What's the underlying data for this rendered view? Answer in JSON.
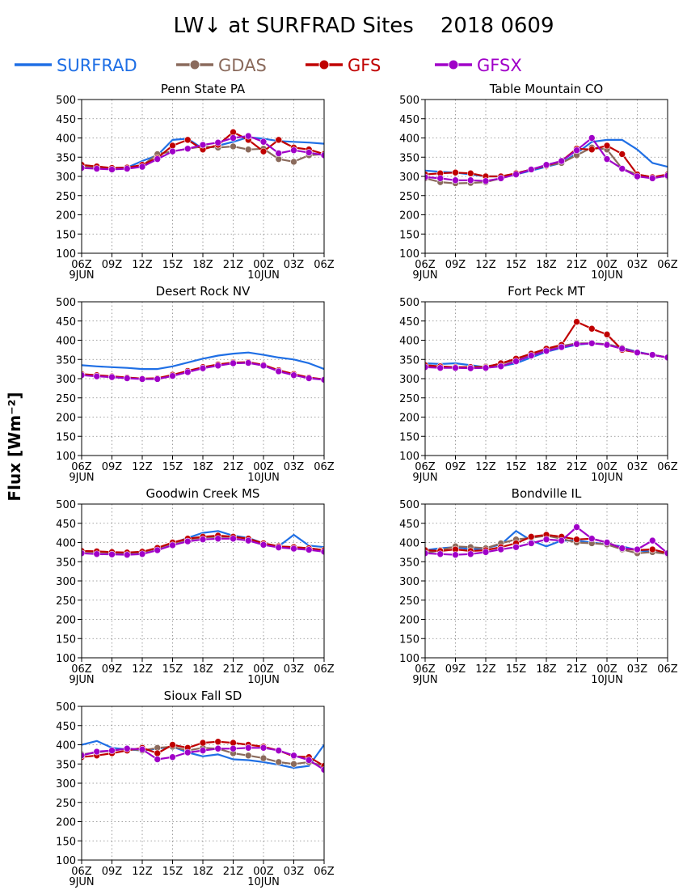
{
  "title": "LW↓ at SURFRAD Sites    2018 0609",
  "ylabel": "Flux [Wm⁻²]",
  "legend": [
    {
      "name": "SURFRAD",
      "color": "#1f6fe5",
      "marker": false
    },
    {
      "name": "GDAS",
      "color": "#8a6a5c",
      "marker": true
    },
    {
      "name": "GFS",
      "color": "#c00000",
      "marker": true
    },
    {
      "name": "GFSX",
      "color": "#a000c8",
      "marker": true
    }
  ],
  "x_ticks": [
    "06Z",
    "09Z",
    "12Z",
    "15Z",
    "18Z",
    "21Z",
    "00Z",
    "03Z",
    "06Z"
  ],
  "x_date_labels": [
    {
      "tick": 0,
      "text": "9JUN"
    },
    {
      "tick": 6,
      "text": "10JUN"
    }
  ],
  "chart_data": [
    {
      "type": "line",
      "title": "Penn State PA",
      "ylim": [
        100,
        500
      ],
      "yticks": [
        100,
        150,
        200,
        250,
        300,
        350,
        400,
        450,
        500
      ],
      "x": [
        0,
        1.5,
        3,
        4.5,
        6,
        7.5,
        9,
        10.5,
        12,
        13.5,
        15,
        16.5,
        18,
        19.5,
        21,
        22.5,
        24
      ],
      "series": [
        {
          "name": "SURFRAD",
          "values": [
            330,
            325,
            322,
            323,
            340,
            355,
            395,
            398,
            372,
            380,
            390,
            402,
            398,
            392,
            390,
            388,
            385
          ]
        },
        {
          "name": "GDAS",
          "values": [
            327,
            323,
            320,
            322,
            328,
            358,
            365,
            372,
            378,
            375,
            378,
            370,
            372,
            345,
            338,
            355,
            358
          ]
        },
        {
          "name": "GFS",
          "values": [
            330,
            326,
            322,
            323,
            330,
            348,
            380,
            395,
            370,
            382,
            415,
            395,
            365,
            395,
            375,
            370,
            358
          ]
        },
        {
          "name": "GFSX",
          "values": [
            322,
            320,
            318,
            320,
            325,
            345,
            365,
            372,
            382,
            388,
            400,
            405,
            390,
            360,
            368,
            362,
            355
          ]
        }
      ]
    },
    {
      "type": "line",
      "title": "Table Mountain CO",
      "ylim": [
        100,
        500
      ],
      "yticks": [
        100,
        150,
        200,
        250,
        300,
        350,
        400,
        450,
        500
      ],
      "x": [
        0,
        1.5,
        3,
        4.5,
        6,
        7.5,
        9,
        10.5,
        12,
        13.5,
        15,
        16.5,
        18,
        19.5,
        21,
        22.5,
        24
      ],
      "series": [
        {
          "name": "SURFRAD",
          "values": [
            315,
            312,
            310,
            305,
            300,
            300,
            305,
            315,
            325,
            335,
            360,
            390,
            395,
            395,
            370,
            335,
            325
          ]
        },
        {
          "name": "GDAS",
          "values": [
            295,
            285,
            282,
            283,
            285,
            295,
            308,
            318,
            328,
            335,
            355,
            375,
            370,
            320,
            305,
            298,
            300
          ]
        },
        {
          "name": "GFS",
          "values": [
            305,
            308,
            310,
            308,
            300,
            300,
            308,
            318,
            328,
            340,
            372,
            370,
            380,
            358,
            305,
            298,
            305
          ]
        },
        {
          "name": "GFSX",
          "values": [
            298,
            295,
            290,
            290,
            288,
            295,
            305,
            318,
            330,
            340,
            368,
            400,
            345,
            320,
            300,
            295,
            302
          ]
        }
      ]
    },
    {
      "type": "line",
      "title": "Desert Rock NV",
      "ylim": [
        100,
        500
      ],
      "yticks": [
        100,
        150,
        200,
        250,
        300,
        350,
        400,
        450,
        500
      ],
      "x": [
        0,
        1.5,
        3,
        4.5,
        6,
        7.5,
        9,
        10.5,
        12,
        13.5,
        15,
        16.5,
        18,
        19.5,
        21,
        22.5,
        24
      ],
      "series": [
        {
          "name": "SURFRAD",
          "values": [
            335,
            332,
            330,
            328,
            325,
            325,
            332,
            342,
            352,
            360,
            365,
            368,
            362,
            355,
            350,
            340,
            325
          ]
        },
        {
          "name": "GDAS",
          "values": [
            310,
            308,
            305,
            303,
            300,
            300,
            308,
            318,
            328,
            335,
            340,
            342,
            335,
            320,
            310,
            302,
            298
          ]
        },
        {
          "name": "GFS",
          "values": [
            312,
            309,
            306,
            303,
            300,
            301,
            310,
            320,
            330,
            337,
            342,
            343,
            336,
            322,
            312,
            303,
            298
          ]
        },
        {
          "name": "GFSX",
          "values": [
            309,
            306,
            304,
            301,
            299,
            299,
            307,
            317,
            327,
            334,
            340,
            341,
            334,
            319,
            309,
            301,
            297
          ]
        }
      ]
    },
    {
      "type": "line",
      "title": "Fort Peck MT",
      "ylim": [
        100,
        500
      ],
      "yticks": [
        100,
        150,
        200,
        250,
        300,
        350,
        400,
        450,
        500
      ],
      "x": [
        0,
        1.5,
        3,
        4.5,
        6,
        7.5,
        9,
        10.5,
        12,
        13.5,
        15,
        16.5,
        18,
        19.5,
        21,
        22.5,
        24
      ],
      "series": [
        {
          "name": "SURFRAD",
          "values": [
            340,
            338,
            340,
            335,
            330,
            332,
            340,
            355,
            370,
            380,
            388,
            392,
            390,
            380,
            370,
            362,
            355
          ]
        },
        {
          "name": "GDAS",
          "values": [
            332,
            330,
            330,
            330,
            332,
            338,
            350,
            362,
            375,
            385,
            392,
            392,
            390,
            380,
            368,
            362,
            355
          ]
        },
        {
          "name": "GFS",
          "values": [
            335,
            332,
            330,
            330,
            330,
            340,
            352,
            365,
            378,
            388,
            448,
            430,
            415,
            375,
            368,
            362,
            355
          ]
        },
        {
          "name": "GFSX",
          "values": [
            330,
            328,
            328,
            327,
            328,
            332,
            345,
            360,
            372,
            382,
            390,
            392,
            388,
            378,
            368,
            362,
            355
          ]
        }
      ]
    },
    {
      "type": "line",
      "title": "Goodwin Creek MS",
      "ylim": [
        100,
        500
      ],
      "yticks": [
        100,
        150,
        200,
        250,
        300,
        350,
        400,
        450,
        500
      ],
      "x": [
        0,
        1.5,
        3,
        4.5,
        6,
        7.5,
        9,
        10.5,
        12,
        13.5,
        15,
        16.5,
        18,
        19.5,
        21,
        22.5,
        24
      ],
      "series": [
        {
          "name": "SURFRAD",
          "values": [
            378,
            376,
            374,
            372,
            375,
            385,
            398,
            412,
            425,
            430,
            418,
            412,
            398,
            390,
            420,
            392,
            388
          ]
        },
        {
          "name": "GDAS",
          "values": [
            377,
            375,
            374,
            373,
            375,
            385,
            398,
            408,
            413,
            415,
            415,
            410,
            398,
            390,
            388,
            385,
            380
          ]
        },
        {
          "name": "GFS",
          "values": [
            378,
            377,
            375,
            374,
            376,
            386,
            400,
            410,
            415,
            418,
            415,
            410,
            398,
            390,
            388,
            385,
            380
          ]
        },
        {
          "name": "GFSX",
          "values": [
            372,
            370,
            369,
            368,
            370,
            380,
            393,
            403,
            408,
            410,
            410,
            405,
            394,
            387,
            384,
            381,
            376
          ]
        }
      ]
    },
    {
      "type": "line",
      "title": "Bondville IL",
      "ylim": [
        100,
        500
      ],
      "yticks": [
        100,
        150,
        200,
        250,
        300,
        350,
        400,
        450,
        500
      ],
      "x": [
        0,
        1.5,
        3,
        4.5,
        6,
        7.5,
        9,
        10.5,
        12,
        13.5,
        15,
        16.5,
        18,
        19.5,
        21,
        22.5,
        24
      ],
      "series": [
        {
          "name": "SURFRAD",
          "values": [
            380,
            385,
            388,
            382,
            385,
            395,
            430,
            405,
            390,
            405,
            405,
            400,
            395,
            390,
            380,
            375,
            372
          ]
        },
        {
          "name": "GDAS",
          "values": [
            372,
            380,
            390,
            388,
            385,
            398,
            408,
            412,
            418,
            410,
            400,
            398,
            395,
            382,
            372,
            375,
            370
          ]
        },
        {
          "name": "GFS",
          "values": [
            380,
            378,
            382,
            378,
            380,
            388,
            398,
            415,
            420,
            415,
            408,
            410,
            400,
            385,
            380,
            382,
            372
          ]
        },
        {
          "name": "GFSX",
          "values": [
            372,
            370,
            368,
            370,
            375,
            382,
            388,
            398,
            408,
            405,
            440,
            410,
            400,
            385,
            382,
            405,
            372
          ]
        }
      ]
    },
    {
      "type": "line",
      "title": "Sioux Fall SD",
      "ylim": [
        100,
        500
      ],
      "yticks": [
        100,
        150,
        200,
        250,
        300,
        350,
        400,
        450,
        500
      ],
      "x": [
        0,
        1.5,
        3,
        4.5,
        6,
        7.5,
        9,
        10.5,
        12,
        13.5,
        15,
        16.5,
        18,
        19.5,
        21,
        22.5,
        24
      ],
      "series": [
        {
          "name": "SURFRAD",
          "values": [
            400,
            410,
            392,
            388,
            385,
            390,
            395,
            380,
            370,
            375,
            362,
            360,
            355,
            348,
            340,
            345,
            400
          ]
        },
        {
          "name": "GDAS",
          "values": [
            375,
            380,
            385,
            390,
            385,
            392,
            395,
            385,
            392,
            390,
            378,
            372,
            365,
            355,
            350,
            355,
            345
          ]
        },
        {
          "name": "GFS",
          "values": [
            368,
            372,
            378,
            385,
            392,
            378,
            400,
            392,
            405,
            408,
            405,
            400,
            395,
            385,
            370,
            368,
            345
          ]
        },
        {
          "name": "GFSX",
          "values": [
            372,
            382,
            385,
            390,
            388,
            362,
            368,
            380,
            385,
            390,
            390,
            392,
            392,
            385,
            372,
            360,
            335
          ]
        }
      ]
    }
  ]
}
